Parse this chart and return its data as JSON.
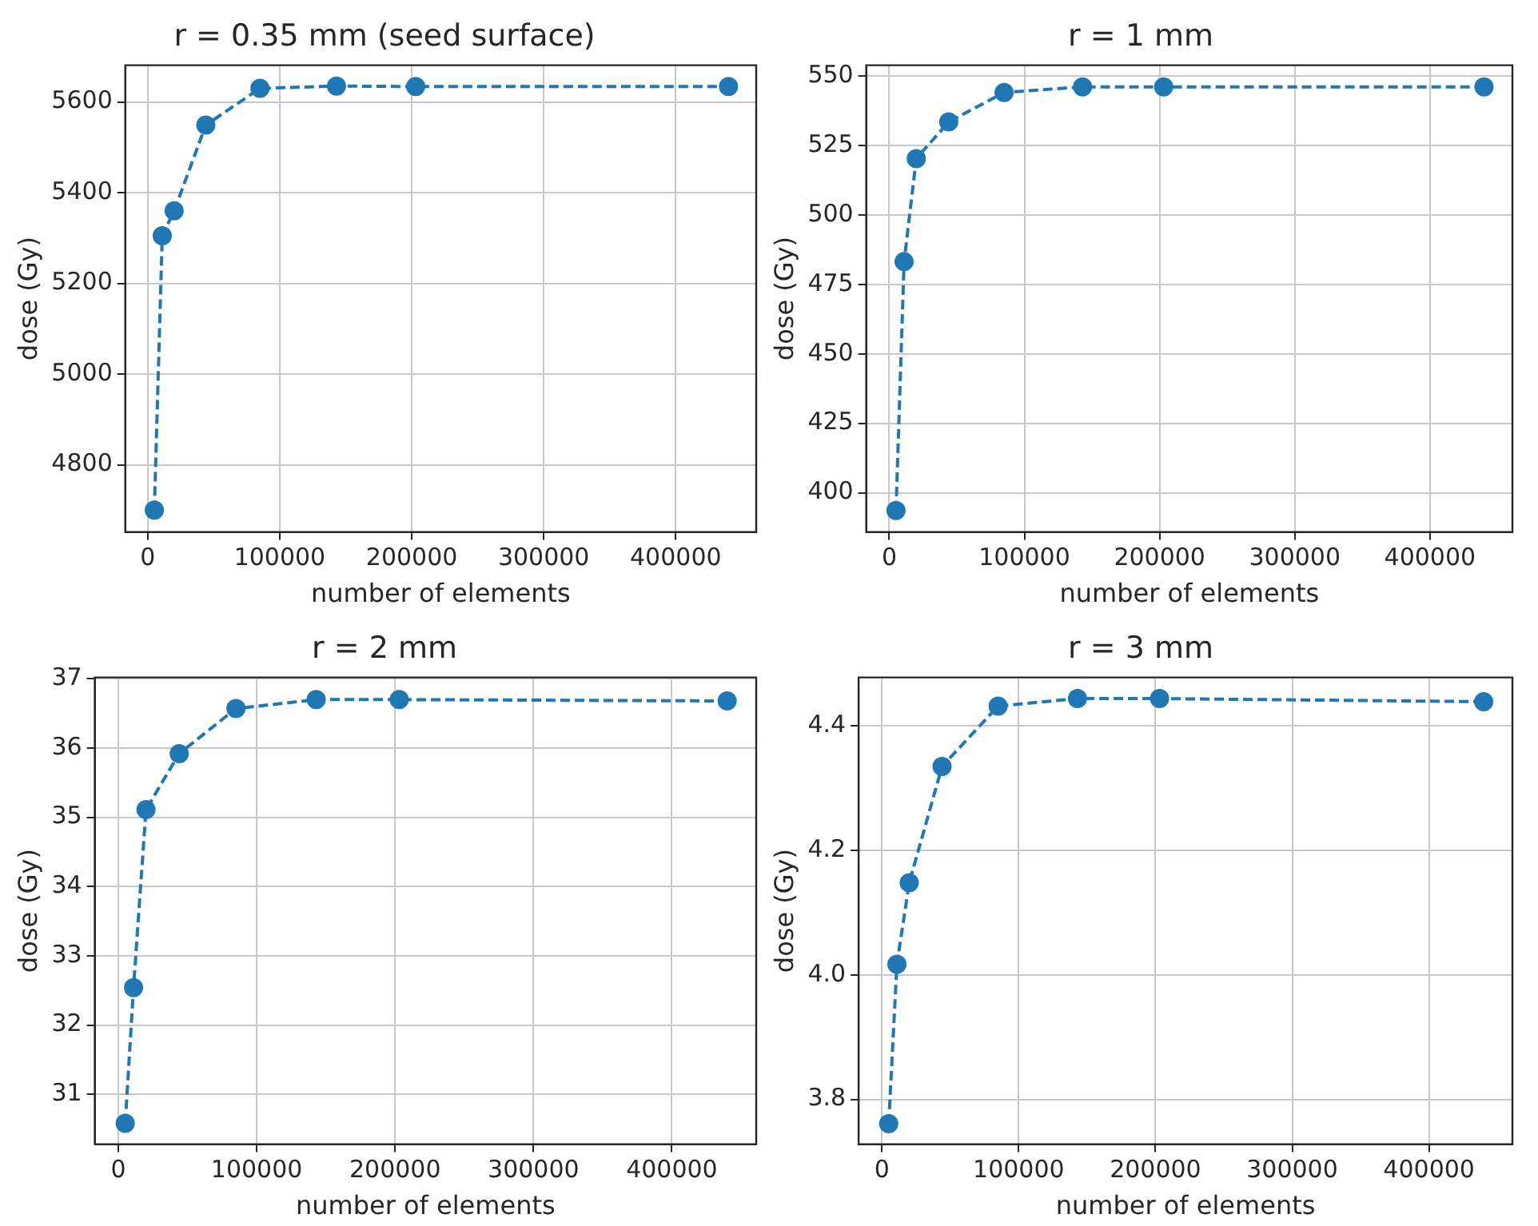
{
  "chart_data": [
    {
      "type": "line",
      "title": "r = 0.35 mm (seed surface)",
      "xlabel": "number of elements",
      "ylabel": "dose (Gy)",
      "x": [
        5000,
        11000,
        20000,
        44000,
        85000,
        143000,
        203000,
        440000
      ],
      "series": [
        {
          "color": "#1f77b4",
          "values": [
            4700,
            5305,
            5360,
            5549,
            5630,
            5635,
            5634,
            5634
          ]
        }
      ],
      "xlim": [
        -17000,
        461000
      ],
      "xticks": [
        0,
        100000,
        200000,
        300000,
        400000
      ],
      "ylim": [
        4652,
        5681
      ],
      "yticks": [
        4800,
        5000,
        5200,
        5400,
        5600
      ],
      "grid": true,
      "marker": "circle",
      "line_style": "dashed"
    },
    {
      "type": "line",
      "title": "r = 1 mm",
      "xlabel": "number of elements",
      "ylabel": "dose (Gy)",
      "x": [
        5000,
        11000,
        20000,
        44000,
        85000,
        143000,
        203000,
        440000
      ],
      "series": [
        {
          "color": "#1f77b4",
          "values": [
            393.6,
            483.2,
            520.3,
            533.5,
            544.1,
            546.1,
            546.1,
            546.1
          ]
        }
      ],
      "xlim": [
        -17000,
        461000
      ],
      "xticks": [
        0,
        100000,
        200000,
        300000,
        400000
      ],
      "ylim": [
        385.9,
        553.9
      ],
      "yticks": [
        400,
        425,
        450,
        475,
        500,
        525,
        550
      ],
      "grid": true,
      "marker": "circle",
      "line_style": "dashed"
    },
    {
      "type": "line",
      "title": "r = 2 mm",
      "xlabel": "number of elements",
      "ylabel": "dose (Gy)",
      "x": [
        5000,
        11000,
        20000,
        44000,
        85000,
        143000,
        203000,
        440000
      ],
      "series": [
        {
          "color": "#1f77b4",
          "values": [
            30.58,
            32.54,
            35.11,
            35.92,
            36.57,
            36.7,
            36.7,
            36.68
          ]
        }
      ],
      "xlim": [
        -17000,
        461000
      ],
      "xticks": [
        0,
        100000,
        200000,
        300000,
        400000
      ],
      "ylim": [
        30.28,
        37.02
      ],
      "yticks": [
        31,
        32,
        33,
        34,
        35,
        36,
        37
      ],
      "grid": true,
      "marker": "circle",
      "line_style": "dashed"
    },
    {
      "type": "line",
      "title": "r = 3 mm",
      "xlabel": "number of elements",
      "ylabel": "dose (Gy)",
      "x": [
        5000,
        11000,
        20000,
        44000,
        85000,
        143000,
        203000,
        440000
      ],
      "series": [
        {
          "color": "#1f77b4",
          "values": [
            3.761,
            4.017,
            4.148,
            4.335,
            4.432,
            4.444,
            4.444,
            4.439
          ]
        }
      ],
      "xlim": [
        -17000,
        461000
      ],
      "xticks": [
        0,
        100000,
        200000,
        300000,
        400000
      ],
      "ylim": [
        3.728,
        4.478
      ],
      "yticks": [
        3.8,
        {
          "value": 4,
          "label": "4.0"
        },
        4.2,
        4.4
      ],
      "grid": true,
      "marker": "circle",
      "line_style": "dashed"
    }
  ]
}
